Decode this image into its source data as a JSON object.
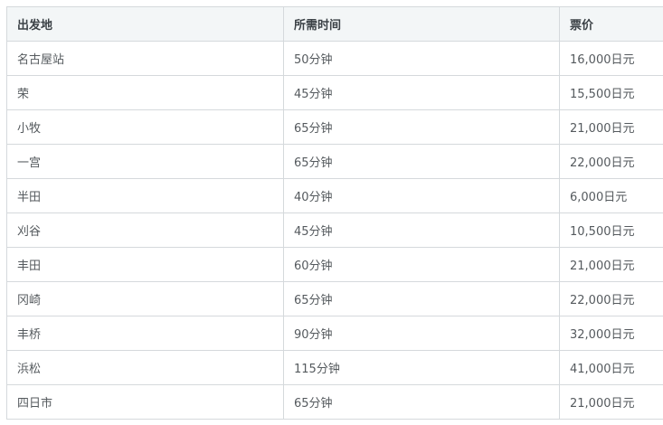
{
  "table": {
    "headers": [
      "出发地",
      "所需时间",
      "票价"
    ],
    "rows": [
      [
        "名古屋站",
        "50分钟",
        "16,000日元"
      ],
      [
        "荣",
        "45分钟",
        "15,500日元"
      ],
      [
        "小牧",
        "65分钟",
        "21,000日元"
      ],
      [
        "一宫",
        "65分钟",
        "22,000日元"
      ],
      [
        "半田",
        "40分钟",
        "6,000日元"
      ],
      [
        "刈谷",
        "45分钟",
        "10,500日元"
      ],
      [
        "丰田",
        "60分钟",
        "21,000日元"
      ],
      [
        "冈崎",
        "65分钟",
        "22,000日元"
      ],
      [
        "丰桥",
        "90分钟",
        "32,000日元"
      ],
      [
        "浜松",
        "115分钟",
        "41,000日元"
      ],
      [
        "四日市",
        "65分钟",
        "21,000日元"
      ]
    ]
  }
}
